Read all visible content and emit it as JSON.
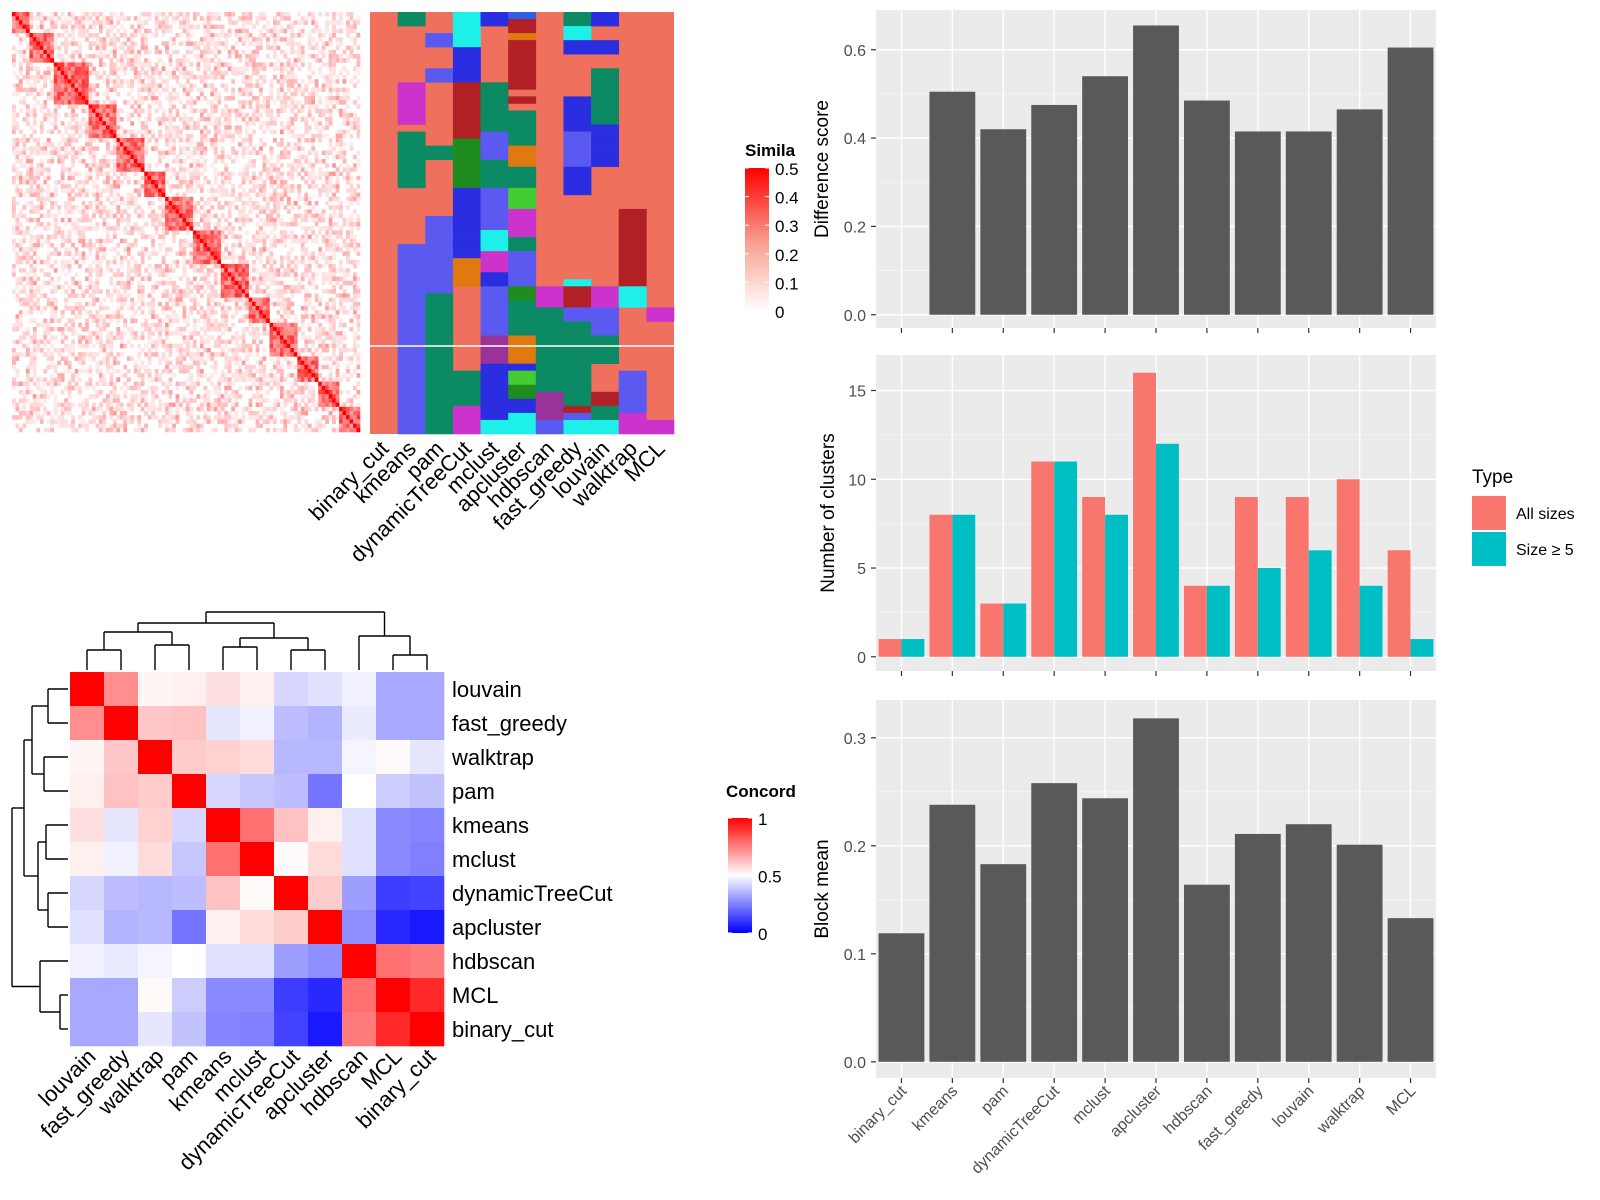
{
  "colors": {
    "panel_bg": "#ebebeb",
    "bar_grey": "#595959",
    "all_sizes": "#f8766d",
    "size_ge_5": "#00bfc4",
    "heat_high": "#ff0000",
    "concord_low": "#0000ff"
  },
  "chart_data": [
    {
      "type": "heatmap",
      "id": "similarity_heatmap",
      "legend_title": "Simila",
      "legend_ticks": [
        "0",
        "0.1",
        "0.2",
        "0.3",
        "0.4",
        "0.5"
      ],
      "legend_range": [
        0,
        0.5
      ],
      "color_low": "#ffffff",
      "color_high": "#ff0000"
    },
    {
      "type": "heatmap",
      "id": "cluster_assignment_heatmap",
      "columns": [
        "binary_cut",
        "kmeans",
        "pam",
        "dynamicTreeCut",
        "mclust",
        "apcluster",
        "hdbscan",
        "fast_greedy",
        "louvain",
        "walktrap",
        "MCL"
      ]
    },
    {
      "type": "heatmap",
      "id": "concordance_heatmap",
      "legend_title": "Concord",
      "legend_ticks": [
        "0",
        "0.5",
        "1"
      ],
      "legend_range": [
        0,
        1
      ],
      "rows": [
        "louvain",
        "fast_greedy",
        "walktrap",
        "pam",
        "kmeans",
        "mclust",
        "dynamicTreeCut",
        "apcluster",
        "hdbscan",
        "MCL",
        "binary_cut"
      ],
      "cols": [
        "louvain",
        "fast_greedy",
        "walktrap",
        "pam",
        "kmeans",
        "mclust",
        "dynamicTreeCut",
        "apcluster",
        "hdbscan",
        "MCL",
        "binary_cut"
      ],
      "values": [
        [
          1.0,
          0.72,
          0.52,
          0.53,
          0.56,
          0.53,
          0.42,
          0.44,
          0.47,
          0.33,
          0.33
        ],
        [
          0.72,
          1.0,
          0.61,
          0.62,
          0.45,
          0.47,
          0.37,
          0.35,
          0.46,
          0.33,
          0.33
        ],
        [
          0.52,
          0.61,
          1.0,
          0.6,
          0.59,
          0.57,
          0.36,
          0.36,
          0.48,
          0.51,
          0.45
        ],
        [
          0.53,
          0.62,
          0.6,
          1.0,
          0.42,
          0.39,
          0.37,
          0.23,
          0.5,
          0.4,
          0.38
        ],
        [
          0.56,
          0.45,
          0.59,
          0.42,
          1.0,
          0.78,
          0.62,
          0.53,
          0.44,
          0.27,
          0.26
        ],
        [
          0.53,
          0.47,
          0.57,
          0.39,
          0.78,
          1.0,
          0.51,
          0.57,
          0.44,
          0.27,
          0.25
        ],
        [
          0.42,
          0.37,
          0.36,
          0.37,
          0.62,
          0.51,
          1.0,
          0.6,
          0.31,
          0.12,
          0.13
        ],
        [
          0.44,
          0.35,
          0.36,
          0.23,
          0.53,
          0.57,
          0.6,
          1.0,
          0.28,
          0.08,
          0.05
        ],
        [
          0.47,
          0.46,
          0.48,
          0.5,
          0.44,
          0.44,
          0.31,
          0.28,
          1.0,
          0.78,
          0.76
        ],
        [
          0.33,
          0.33,
          0.51,
          0.4,
          0.27,
          0.27,
          0.12,
          0.08,
          0.78,
          1.0,
          0.92
        ],
        [
          0.33,
          0.33,
          0.45,
          0.38,
          0.26,
          0.25,
          0.13,
          0.05,
          0.76,
          0.92,
          1.0
        ]
      ]
    },
    {
      "type": "bar",
      "id": "difference_score",
      "categories": [
        "binary_cut",
        "kmeans",
        "pam",
        "dynamicTreeCut",
        "mclust",
        "apcluster",
        "hdbscan",
        "fast_greedy",
        "louvain",
        "walktrap",
        "MCL"
      ],
      "values": [
        0.0,
        0.505,
        0.42,
        0.475,
        0.54,
        0.655,
        0.485,
        0.415,
        0.415,
        0.465,
        0.605
      ],
      "ylabel": "Difference score",
      "ylim": [
        -0.03,
        0.69
      ],
      "yticks": [
        "0.0",
        "0.2",
        "0.4",
        "0.6"
      ],
      "ytick_values": [
        0,
        0.2,
        0.4,
        0.6
      ]
    },
    {
      "type": "bar",
      "id": "number_of_clusters",
      "categories": [
        "binary_cut",
        "kmeans",
        "pam",
        "dynamicTreeCut",
        "mclust",
        "apcluster",
        "hdbscan",
        "fast_greedy",
        "louvain",
        "walktrap",
        "MCL"
      ],
      "series": [
        {
          "name": "All sizes",
          "values": [
            1,
            8,
            3,
            11,
            9,
            16,
            4,
            9,
            9,
            10,
            6
          ]
        },
        {
          "name": "Size ≥ 5",
          "values": [
            1,
            8,
            3,
            11,
            8,
            12,
            4,
            5,
            6,
            4,
            1
          ]
        }
      ],
      "ylabel": "Number of clusters",
      "ylim": [
        -0.8,
        17
      ],
      "yticks": [
        "0",
        "5",
        "10",
        "15"
      ],
      "ytick_values": [
        0,
        5,
        10,
        15
      ],
      "legend_title": "Type"
    },
    {
      "type": "bar",
      "id": "block_mean",
      "categories": [
        "binary_cut",
        "kmeans",
        "pam",
        "dynamicTreeCut",
        "mclust",
        "apcluster",
        "hdbscan",
        "fast_greedy",
        "louvain",
        "walktrap",
        "MCL"
      ],
      "values": [
        0.119,
        0.238,
        0.183,
        0.258,
        0.244,
        0.318,
        0.164,
        0.211,
        0.22,
        0.201,
        0.133
      ],
      "ylabel": "Block mean",
      "ylim": [
        -0.015,
        0.335
      ],
      "yticks": [
        "0.0",
        "0.1",
        "0.2",
        "0.3"
      ],
      "ytick_values": [
        0,
        0.1,
        0.2,
        0.3
      ]
    }
  ]
}
